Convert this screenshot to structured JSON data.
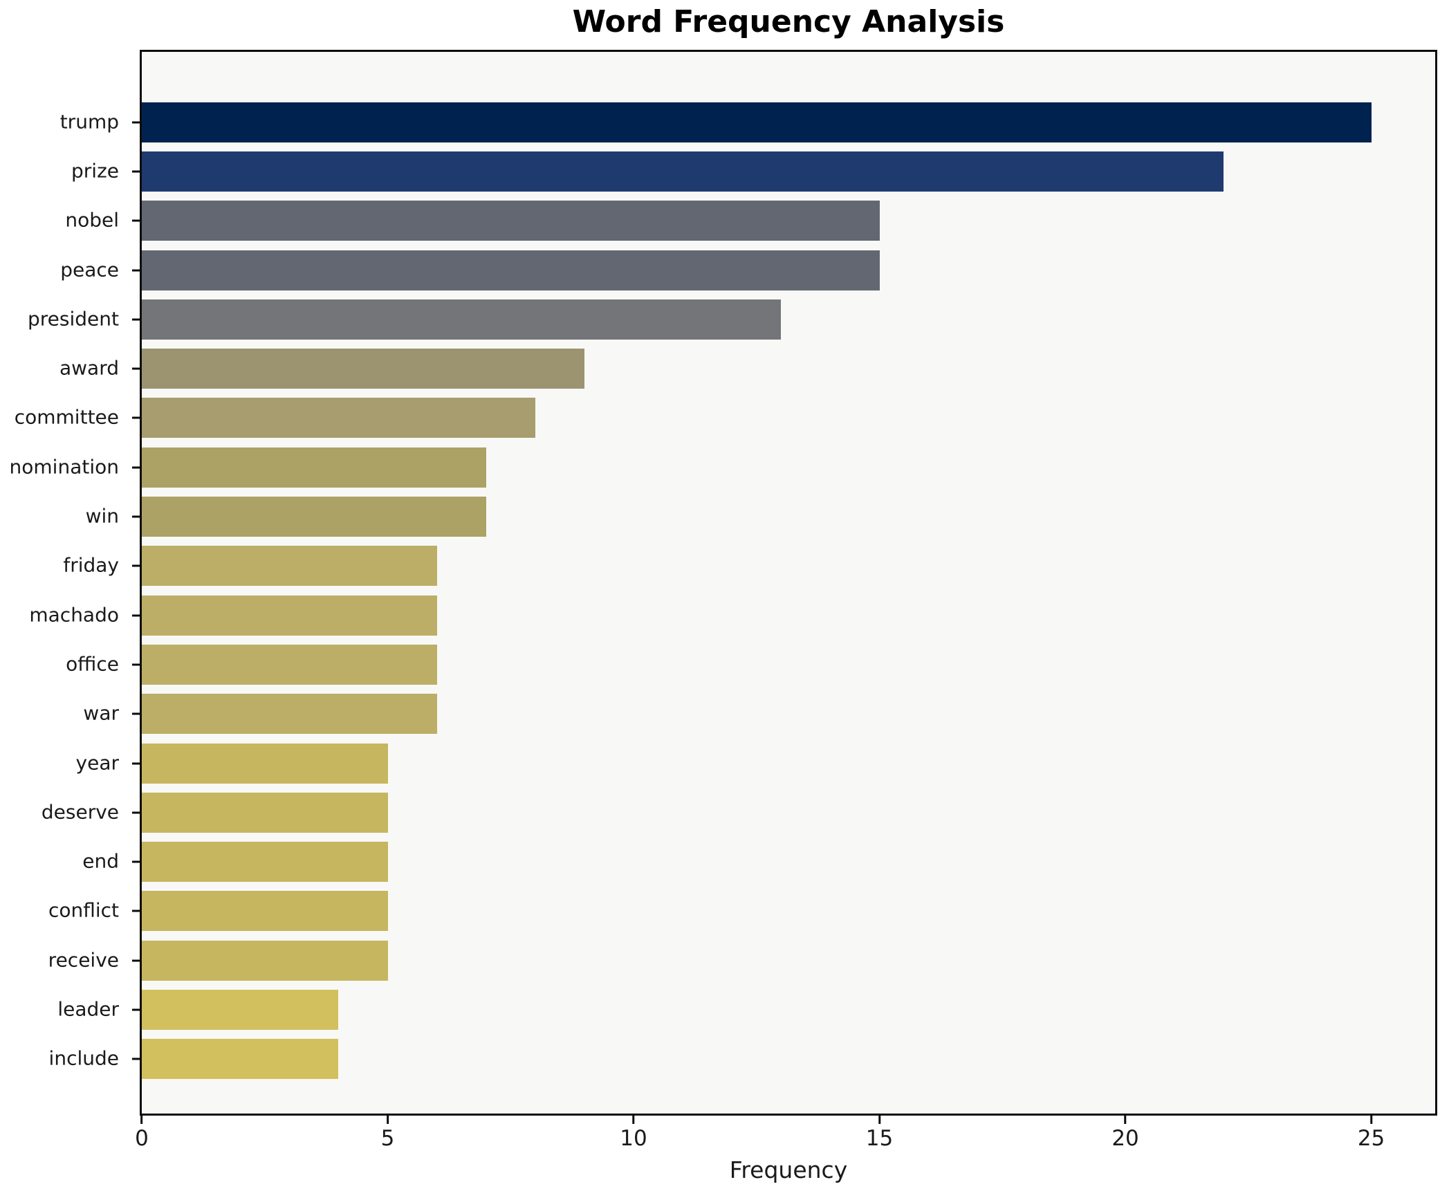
{
  "chart_data": {
    "type": "bar",
    "orientation": "horizontal",
    "title": "Word Frequency Analysis",
    "xlabel": "Frequency",
    "ylabel": "",
    "categories": [
      "trump",
      "prize",
      "nobel",
      "peace",
      "president",
      "award",
      "committee",
      "nomination",
      "win",
      "friday",
      "machado",
      "office",
      "war",
      "year",
      "deserve",
      "end",
      "conflict",
      "receive",
      "leader",
      "include"
    ],
    "values": [
      25,
      22,
      15,
      15,
      13,
      9,
      8,
      7,
      7,
      6,
      6,
      6,
      6,
      5,
      5,
      5,
      5,
      5,
      4,
      4
    ],
    "bar_colors": [
      "#00224e",
      "#1e3a6f",
      "#636772",
      "#636772",
      "#747578",
      "#9c9471",
      "#a79d6e",
      "#ada266",
      "#ada266",
      "#bcae66",
      "#bcae66",
      "#bcae66",
      "#bcae66",
      "#c6b65f",
      "#c6b65f",
      "#c6b65f",
      "#c6b65f",
      "#c6b65f",
      "#d2c05e",
      "#d2c05e"
    ],
    "xlim": [
      0,
      26.3
    ],
    "xticks": [
      0,
      5,
      10,
      15,
      20,
      25
    ],
    "grid": false,
    "legend": null,
    "colors": {
      "plot_background": "#f8f8f7",
      "figure_background": "#ffffff",
      "spine": "#0c0c0c",
      "text": "#1a1a1a",
      "title": "#000000"
    }
  }
}
